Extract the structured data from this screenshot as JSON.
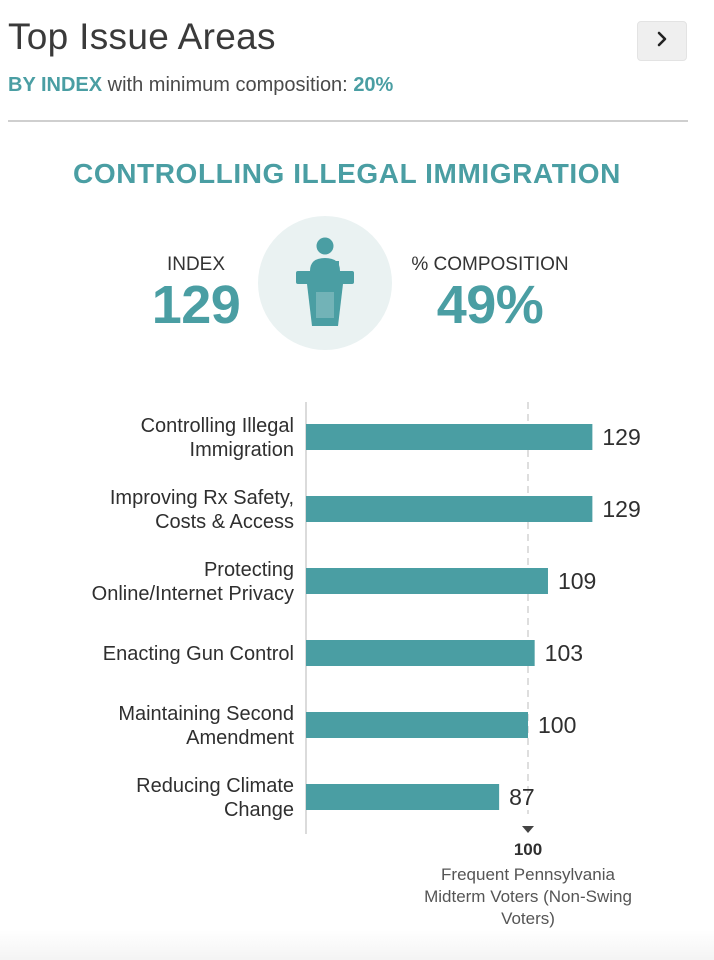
{
  "header": {
    "title": "Top Issue Areas",
    "next_icon": "chevron-right-icon",
    "subtitle_mode": "BY INDEX",
    "subtitle_text": "with minimum composition:",
    "subtitle_min": "20%"
  },
  "featured": {
    "issue": "CONTROLLING ILLEGAL IMMIGRATION",
    "index_label": "INDEX",
    "index_value": "129",
    "composition_label": "% COMPOSITION",
    "composition_value": "49%",
    "icon": "podium-speaker-icon"
  },
  "colors": {
    "accent": "#4a9ea3",
    "icon_bg": "#eaf2f2"
  },
  "chart_data": {
    "type": "bar",
    "orientation": "horizontal",
    "categories": [
      [
        "Controlling Illegal",
        "Immigration"
      ],
      [
        "Improving Rx Safety,",
        "Costs & Access"
      ],
      [
        "Protecting",
        "Online/Internet Privacy"
      ],
      [
        "Enacting Gun Control"
      ],
      [
        "Maintaining Second",
        "Amendment"
      ],
      [
        "Reducing Climate",
        "Change"
      ]
    ],
    "values": [
      129,
      129,
      109,
      103,
      100,
      87
    ],
    "xlim": [
      0,
      130
    ],
    "reference": {
      "value": 100,
      "label_lines": [
        "Frequent Pennsylvania",
        "Midterm Voters (Non-Swing",
        "Voters)"
      ]
    }
  }
}
